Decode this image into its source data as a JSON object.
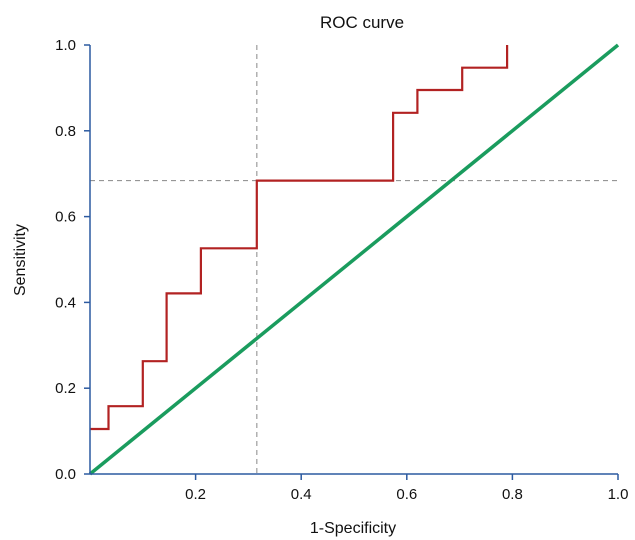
{
  "chart_data": {
    "type": "line",
    "title": "ROC curve",
    "xlabel": "1-Specificity",
    "ylabel": "Sensitivity",
    "xlim": [
      0,
      1
    ],
    "ylim": [
      0,
      1
    ],
    "x_ticks": [
      "0.2",
      "0.4",
      "0.6",
      "0.8",
      "1.0"
    ],
    "y_ticks": [
      "0.0",
      "0.2",
      "0.4",
      "0.6",
      "0.8",
      "1.0"
    ],
    "grid": false,
    "legend": "none",
    "series": [
      {
        "color": "#b22222",
        "style": "step",
        "points": [
          [
            0.0,
            0.105
          ],
          [
            0.035,
            0.105
          ],
          [
            0.035,
            0.158
          ],
          [
            0.1,
            0.158
          ],
          [
            0.1,
            0.263
          ],
          [
            0.145,
            0.263
          ],
          [
            0.145,
            0.421
          ],
          [
            0.21,
            0.421
          ],
          [
            0.21,
            0.526
          ],
          [
            0.316,
            0.526
          ],
          [
            0.316,
            0.684
          ],
          [
            0.574,
            0.684
          ],
          [
            0.574,
            0.842
          ],
          [
            0.62,
            0.842
          ],
          [
            0.62,
            0.895
          ],
          [
            0.705,
            0.895
          ],
          [
            0.705,
            0.947
          ],
          [
            0.79,
            0.947
          ],
          [
            0.79,
            1.0
          ]
        ]
      },
      {
        "color": "#1a9c5e",
        "style": "diagonal",
        "points": [
          [
            0,
            0
          ],
          [
            1,
            1
          ]
        ]
      }
    ],
    "reference_lines": [
      {
        "axis": "x",
        "value": 0.316,
        "color": "#888888"
      },
      {
        "axis": "y",
        "value": 0.684,
        "color": "#888888"
      }
    ],
    "axis_color": "#2c5aa0"
  }
}
